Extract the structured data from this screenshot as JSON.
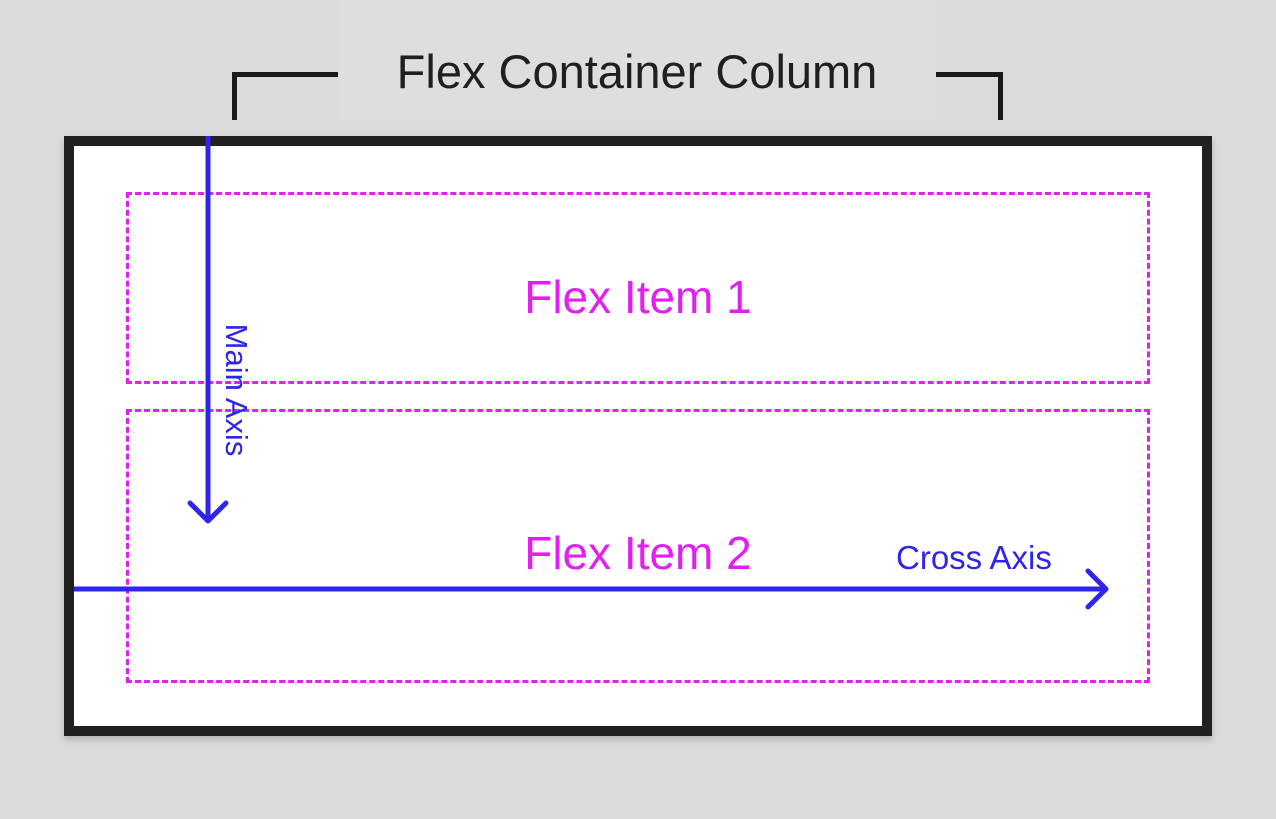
{
  "title": "Flex Container Column",
  "flex_items": [
    {
      "label": "Flex Item 1"
    },
    {
      "label": "Flex Item 2"
    }
  ],
  "axes": {
    "main_axis": {
      "label": "Main Axis",
      "direction": "down"
    },
    "cross_axis": {
      "label": "Cross Axis",
      "direction": "right"
    }
  },
  "colors": {
    "background": "#dbdbdb",
    "container_border": "#202020",
    "container_fill": "#ffffff",
    "flex_item": "#e21ff2",
    "axis": "#2f24ec",
    "title_text": "#1f1f1f"
  }
}
